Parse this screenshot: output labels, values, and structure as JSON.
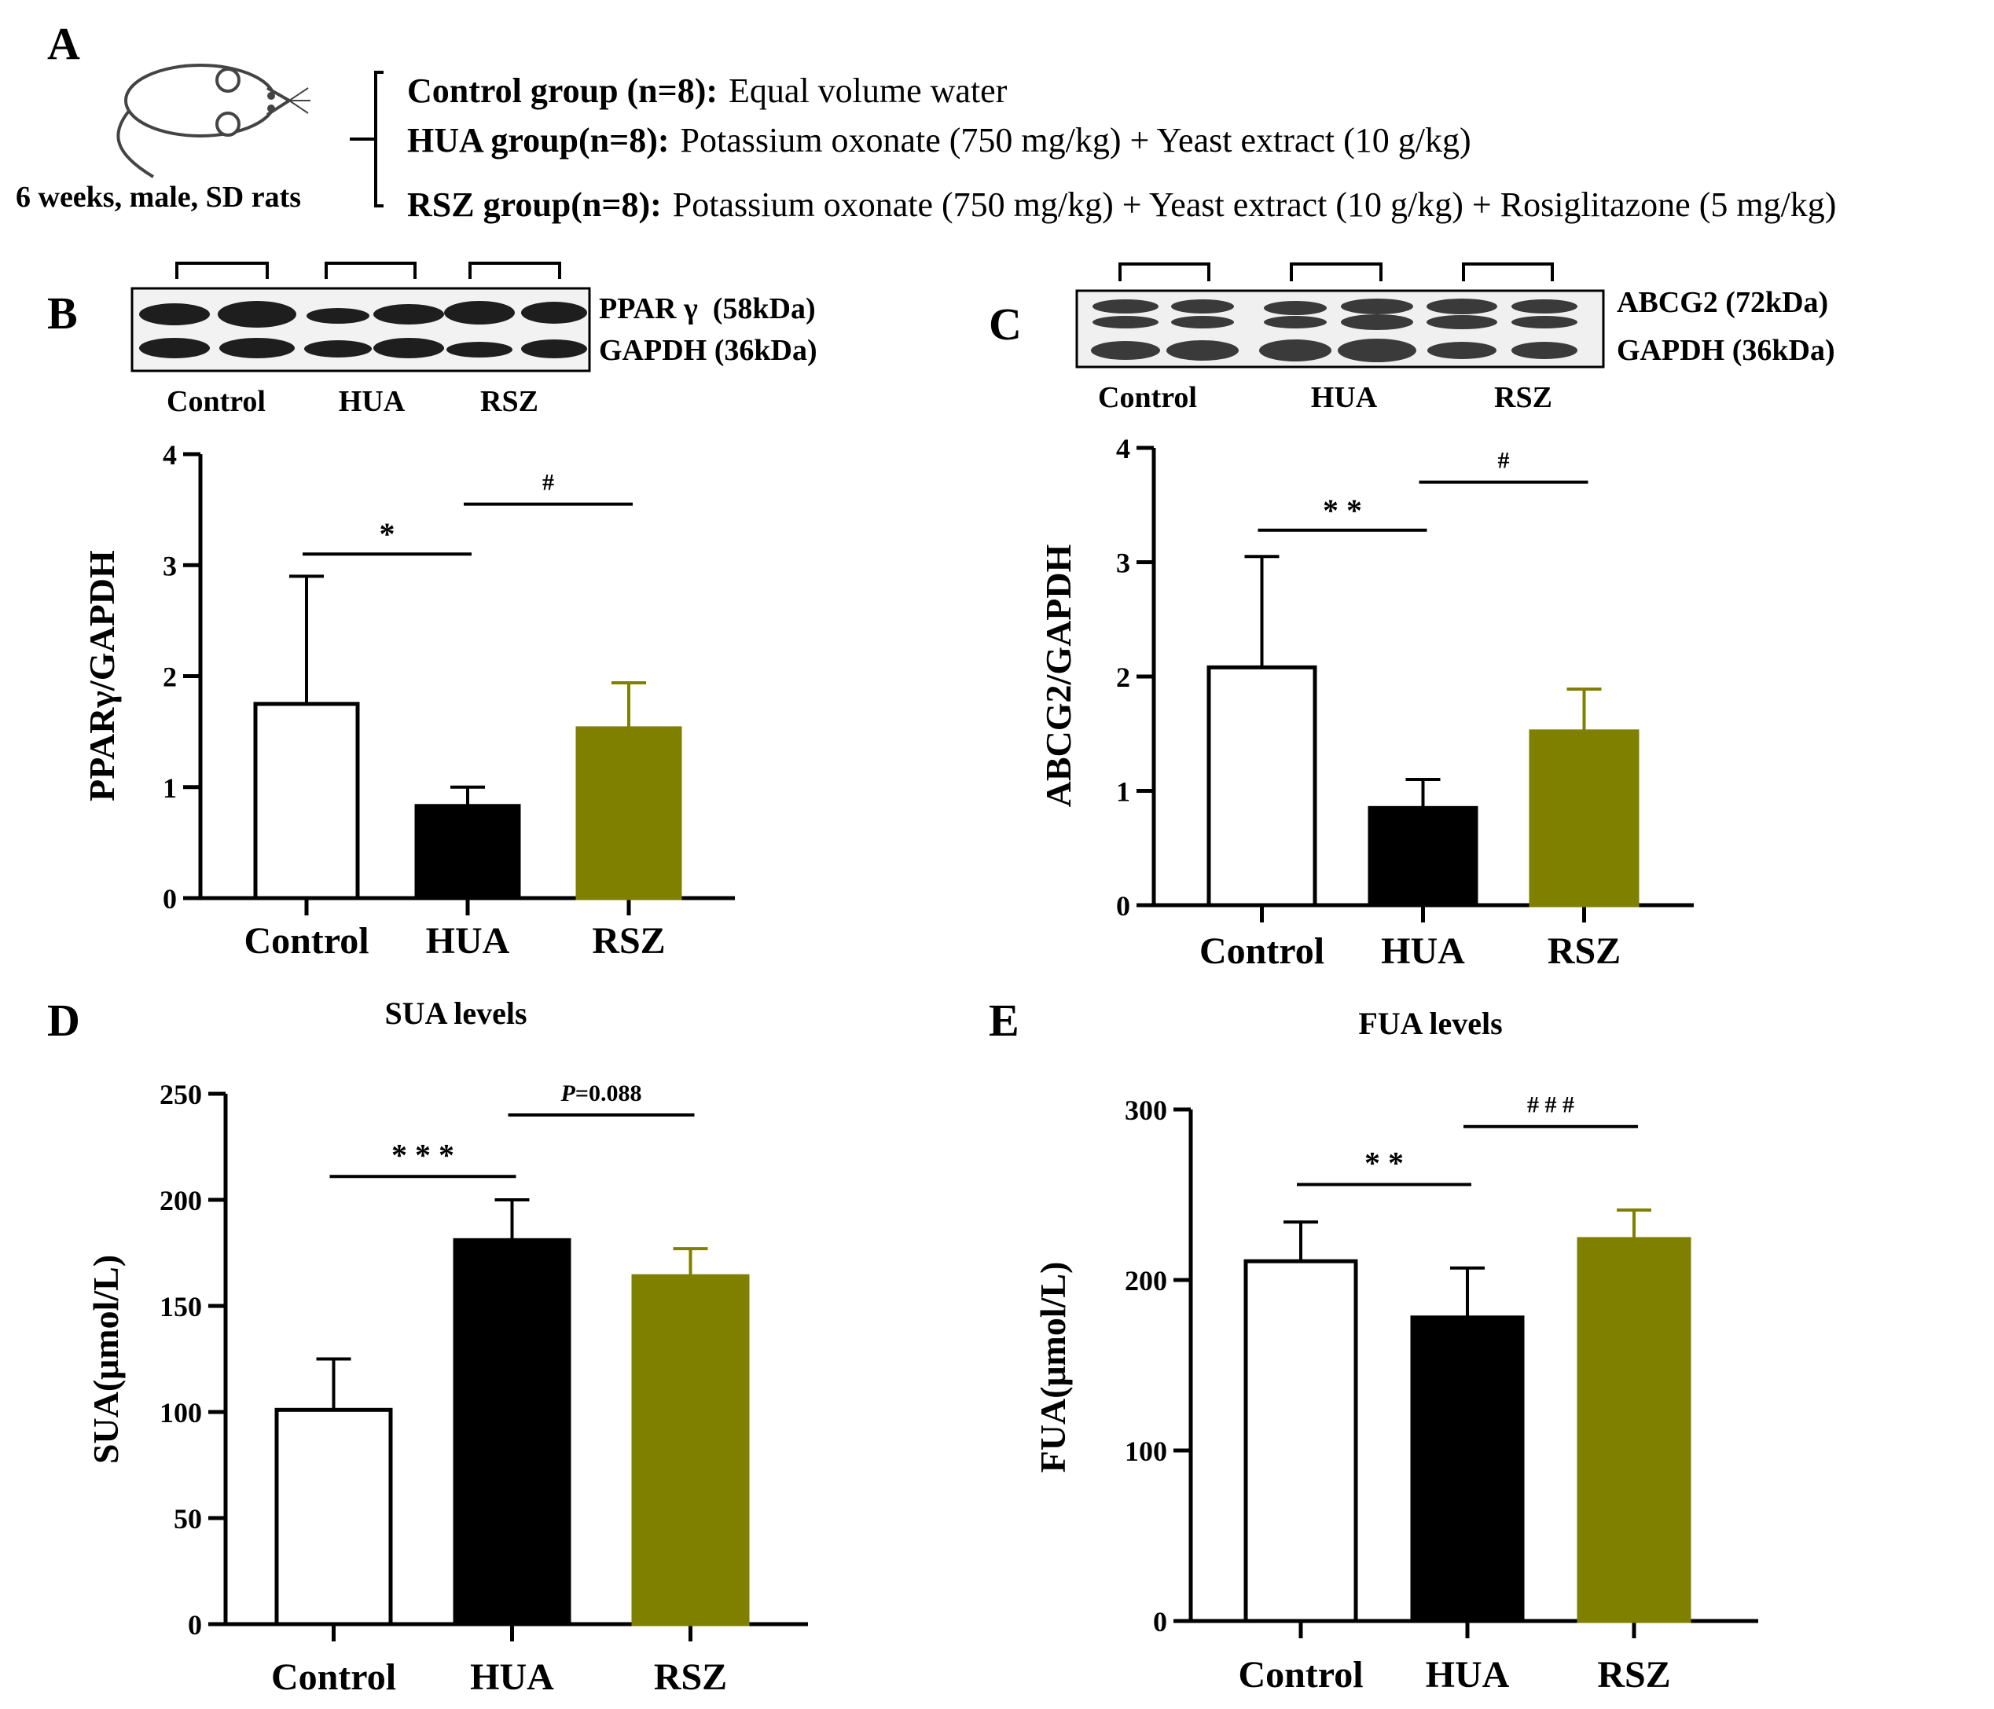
{
  "panel_A": {
    "letter": "A",
    "animal_label": "6 weeks, male, SD rats",
    "groups": [
      {
        "name": "Control group (n=8):",
        "treatment": "Equal volume water"
      },
      {
        "name": "HUA group(n=8):",
        "treatment": "Potassium oxonate (750 mg/kg) + Yeast extract (10 g/kg)"
      },
      {
        "name": "RSZ group(n=8):",
        "treatment": "Potassium oxonate (750 mg/kg) + Yeast extract (10 g/kg) + Rosiglitazone (5 mg/kg)"
      }
    ],
    "icons": [
      "rat-icon"
    ]
  },
  "blots": {
    "B": {
      "protein_label": "PPAR γ  (58kDa)",
      "loading_label": "GAPDH (36kDa)",
      "lanes": [
        "Control",
        "HUA",
        "RSZ"
      ]
    },
    "C": {
      "protein_label": "ABCG2 (72kDa)",
      "loading_label": "GAPDH (36kDa)",
      "lanes": [
        "Control",
        "HUA",
        "RSZ"
      ]
    }
  },
  "colors": {
    "control": "#ffffff",
    "hua": "#000000",
    "rsz": "#7f7f00",
    "axis": "#000000"
  },
  "chart_data": [
    {
      "id": "B",
      "letter": "B",
      "type": "bar",
      "title": "",
      "categories": [
        "Control",
        "HUA",
        "RSZ"
      ],
      "values": [
        1.75,
        0.83,
        1.53
      ],
      "errors": [
        1.15,
        0.17,
        0.41
      ],
      "ylabel": "PPARγ/GAPDH",
      "xlabel": "",
      "ylim": [
        0,
        4
      ],
      "yticks": [
        0,
        1,
        2,
        3,
        4
      ],
      "ytick_labels": [
        "0",
        "1",
        "2",
        "3",
        "4"
      ],
      "significance": [
        {
          "between": [
            0,
            1
          ],
          "label": "*",
          "at": 3.1
        },
        {
          "between": [
            1,
            2
          ],
          "label": "#",
          "at": 3.55
        }
      ]
    },
    {
      "id": "C",
      "letter": "C",
      "type": "bar",
      "title": "",
      "categories": [
        "Control",
        "HUA",
        "RSZ"
      ],
      "values": [
        2.08,
        0.85,
        1.52
      ],
      "errors": [
        0.97,
        0.25,
        0.37
      ],
      "ylabel": "ABCG2/GAPDH",
      "xlabel": "",
      "ylim": [
        0,
        4
      ],
      "yticks": [
        0,
        1,
        2,
        3,
        4
      ],
      "ytick_labels": [
        "0",
        "1",
        "2",
        "3",
        "4"
      ],
      "significance": [
        {
          "between": [
            0,
            1
          ],
          "label": "**",
          "at": 3.28
        },
        {
          "between": [
            1,
            2
          ],
          "label": "#",
          "at": 3.7
        }
      ]
    },
    {
      "id": "D",
      "letter": "D",
      "type": "bar",
      "title": "SUA levels",
      "categories": [
        "Control",
        "HUA",
        "RSZ"
      ],
      "values": [
        101,
        181,
        164
      ],
      "errors": [
        24,
        19,
        13
      ],
      "ylabel": "SUA(μmol/L)",
      "xlabel": "",
      "ylim": [
        0,
        250
      ],
      "yticks": [
        0,
        50,
        100,
        150,
        200,
        250
      ],
      "ytick_labels": [
        "0",
        "50",
        "100",
        "150",
        "200",
        "250"
      ],
      "significance": [
        {
          "between": [
            0,
            1
          ],
          "label": "***",
          "at": 211
        },
        {
          "between": [
            1,
            2
          ],
          "label": "P=0.088",
          "italic_prefix": "P",
          "rest": "=0.088",
          "at": 240
        }
      ]
    },
    {
      "id": "E",
      "letter": "E",
      "type": "bar",
      "title": "FUA levels",
      "categories": [
        "Control",
        "HUA",
        "RSZ"
      ],
      "values": [
        211,
        178,
        224
      ],
      "errors": [
        23,
        29,
        17
      ],
      "ylabel": "FUA(μmol/L)",
      "xlabel": "",
      "ylim": [
        0,
        300
      ],
      "yticks": [
        0,
        100,
        200,
        300
      ],
      "ytick_labels": [
        "0",
        "100",
        "200",
        "300"
      ],
      "significance": [
        {
          "between": [
            0,
            1
          ],
          "label": "**",
          "at": 256
        },
        {
          "between": [
            1,
            2
          ],
          "label": "###",
          "at": 290
        }
      ]
    }
  ]
}
